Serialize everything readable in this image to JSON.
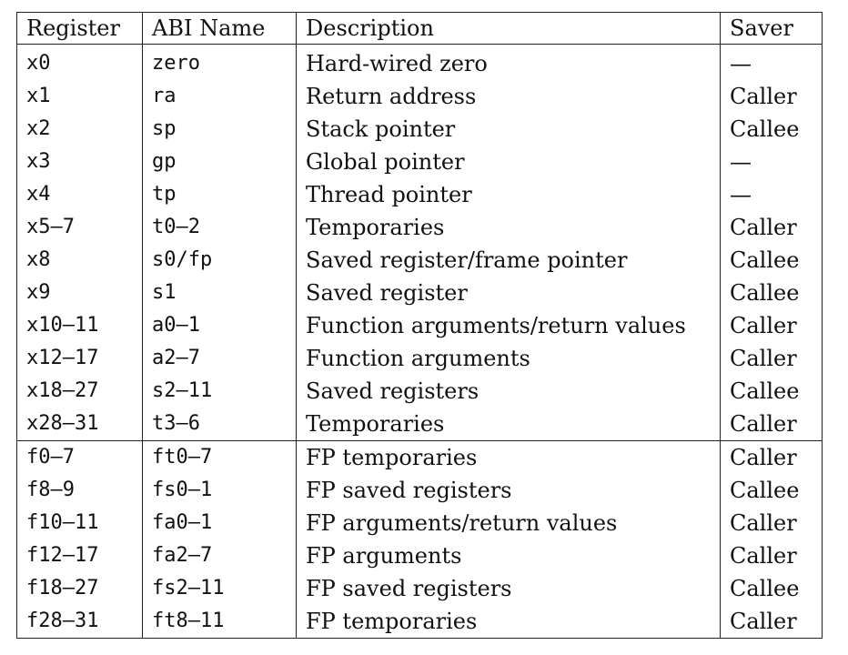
{
  "header": {
    "register": "Register",
    "abi_name": "ABI Name",
    "description": "Description",
    "saver": "Saver"
  },
  "int_rows": [
    {
      "register": "x0",
      "abi": "zero",
      "description": "Hard-wired zero",
      "saver": "—"
    },
    {
      "register": "x1",
      "abi": "ra",
      "description": "Return address",
      "saver": "Caller"
    },
    {
      "register": "x2",
      "abi": "sp",
      "description": "Stack pointer",
      "saver": "Callee"
    },
    {
      "register": "x3",
      "abi": "gp",
      "description": "Global pointer",
      "saver": "—"
    },
    {
      "register": "x4",
      "abi": "tp",
      "description": "Thread pointer",
      "saver": "—"
    },
    {
      "register": "x5–7",
      "abi": "t0–2",
      "description": "Temporaries",
      "saver": "Caller"
    },
    {
      "register": "x8",
      "abi": "s0/fp",
      "description": "Saved register/frame pointer",
      "saver": "Callee"
    },
    {
      "register": "x9",
      "abi": "s1",
      "description": "Saved register",
      "saver": "Callee"
    },
    {
      "register": "x10–11",
      "abi": "a0–1",
      "description": "Function arguments/return values",
      "saver": "Caller"
    },
    {
      "register": "x12–17",
      "abi": "a2–7",
      "description": "Function arguments",
      "saver": "Caller"
    },
    {
      "register": "x18–27",
      "abi": "s2–11",
      "description": "Saved registers",
      "saver": "Callee"
    },
    {
      "register": "x28–31",
      "abi": "t3–6",
      "description": "Temporaries",
      "saver": "Caller"
    }
  ],
  "fp_rows": [
    {
      "register": "f0–7",
      "abi": "ft0–7",
      "description": "FP temporaries",
      "saver": "Caller"
    },
    {
      "register": "f8–9",
      "abi": "fs0–1",
      "description": "FP saved registers",
      "saver": "Callee"
    },
    {
      "register": "f10–11",
      "abi": "fa0–1",
      "description": "FP arguments/return values",
      "saver": "Caller"
    },
    {
      "register": "f12–17",
      "abi": "fa2–7",
      "description": "FP arguments",
      "saver": "Caller"
    },
    {
      "register": "f18–27",
      "abi": "fs2–11",
      "description": "FP saved registers",
      "saver": "Callee"
    },
    {
      "register": "f28–31",
      "abi": "ft8–11",
      "description": "FP temporaries",
      "saver": "Caller"
    }
  ]
}
